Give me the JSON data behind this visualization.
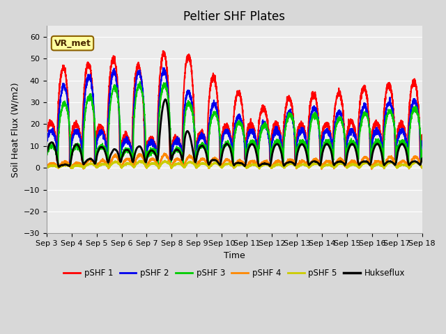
{
  "title": "Peltier SHF Plates",
  "xlabel": "Time",
  "ylabel": "Soil Heat Flux (W/m2)",
  "ylim": [
    -30,
    65
  ],
  "yticks": [
    -30,
    -20,
    -10,
    0,
    10,
    20,
    30,
    40,
    50,
    60
  ],
  "xlim": [
    0,
    15
  ],
  "xtick_labels": [
    "Sep 3",
    "Sep 4",
    "Sep 5",
    "Sep 6",
    "Sep 7",
    "Sep 8",
    "Sep 9",
    "Sep 10",
    "Sep 11",
    "Sep 12",
    "Sep 13",
    "Sep 14",
    "Sep 15",
    "Sep 16",
    "Sep 17",
    "Sep 18"
  ],
  "annotation_text": "VR_met",
  "series": {
    "pSHF 1": {
      "color": "#ff0000",
      "lw": 1.5
    },
    "pSHF 2": {
      "color": "#0000ee",
      "lw": 1.5
    },
    "pSHF 3": {
      "color": "#00cc00",
      "lw": 1.5
    },
    "pSHF 4": {
      "color": "#ff8800",
      "lw": 1.5
    },
    "pSHF 5": {
      "color": "#cccc00",
      "lw": 1.5
    },
    "Hukseflux": {
      "color": "#000000",
      "lw": 2.0
    }
  },
  "legend_order": [
    "pSHF 1",
    "pSHF 2",
    "pSHF 3",
    "pSHF 4",
    "pSHF 5",
    "Hukseflux"
  ],
  "background_color": "#d8d8d8",
  "plot_bg_color": "#ebebeb",
  "grid_color": "#ffffff",
  "title_fontsize": 12,
  "label_fontsize": 9,
  "tick_fontsize": 8
}
